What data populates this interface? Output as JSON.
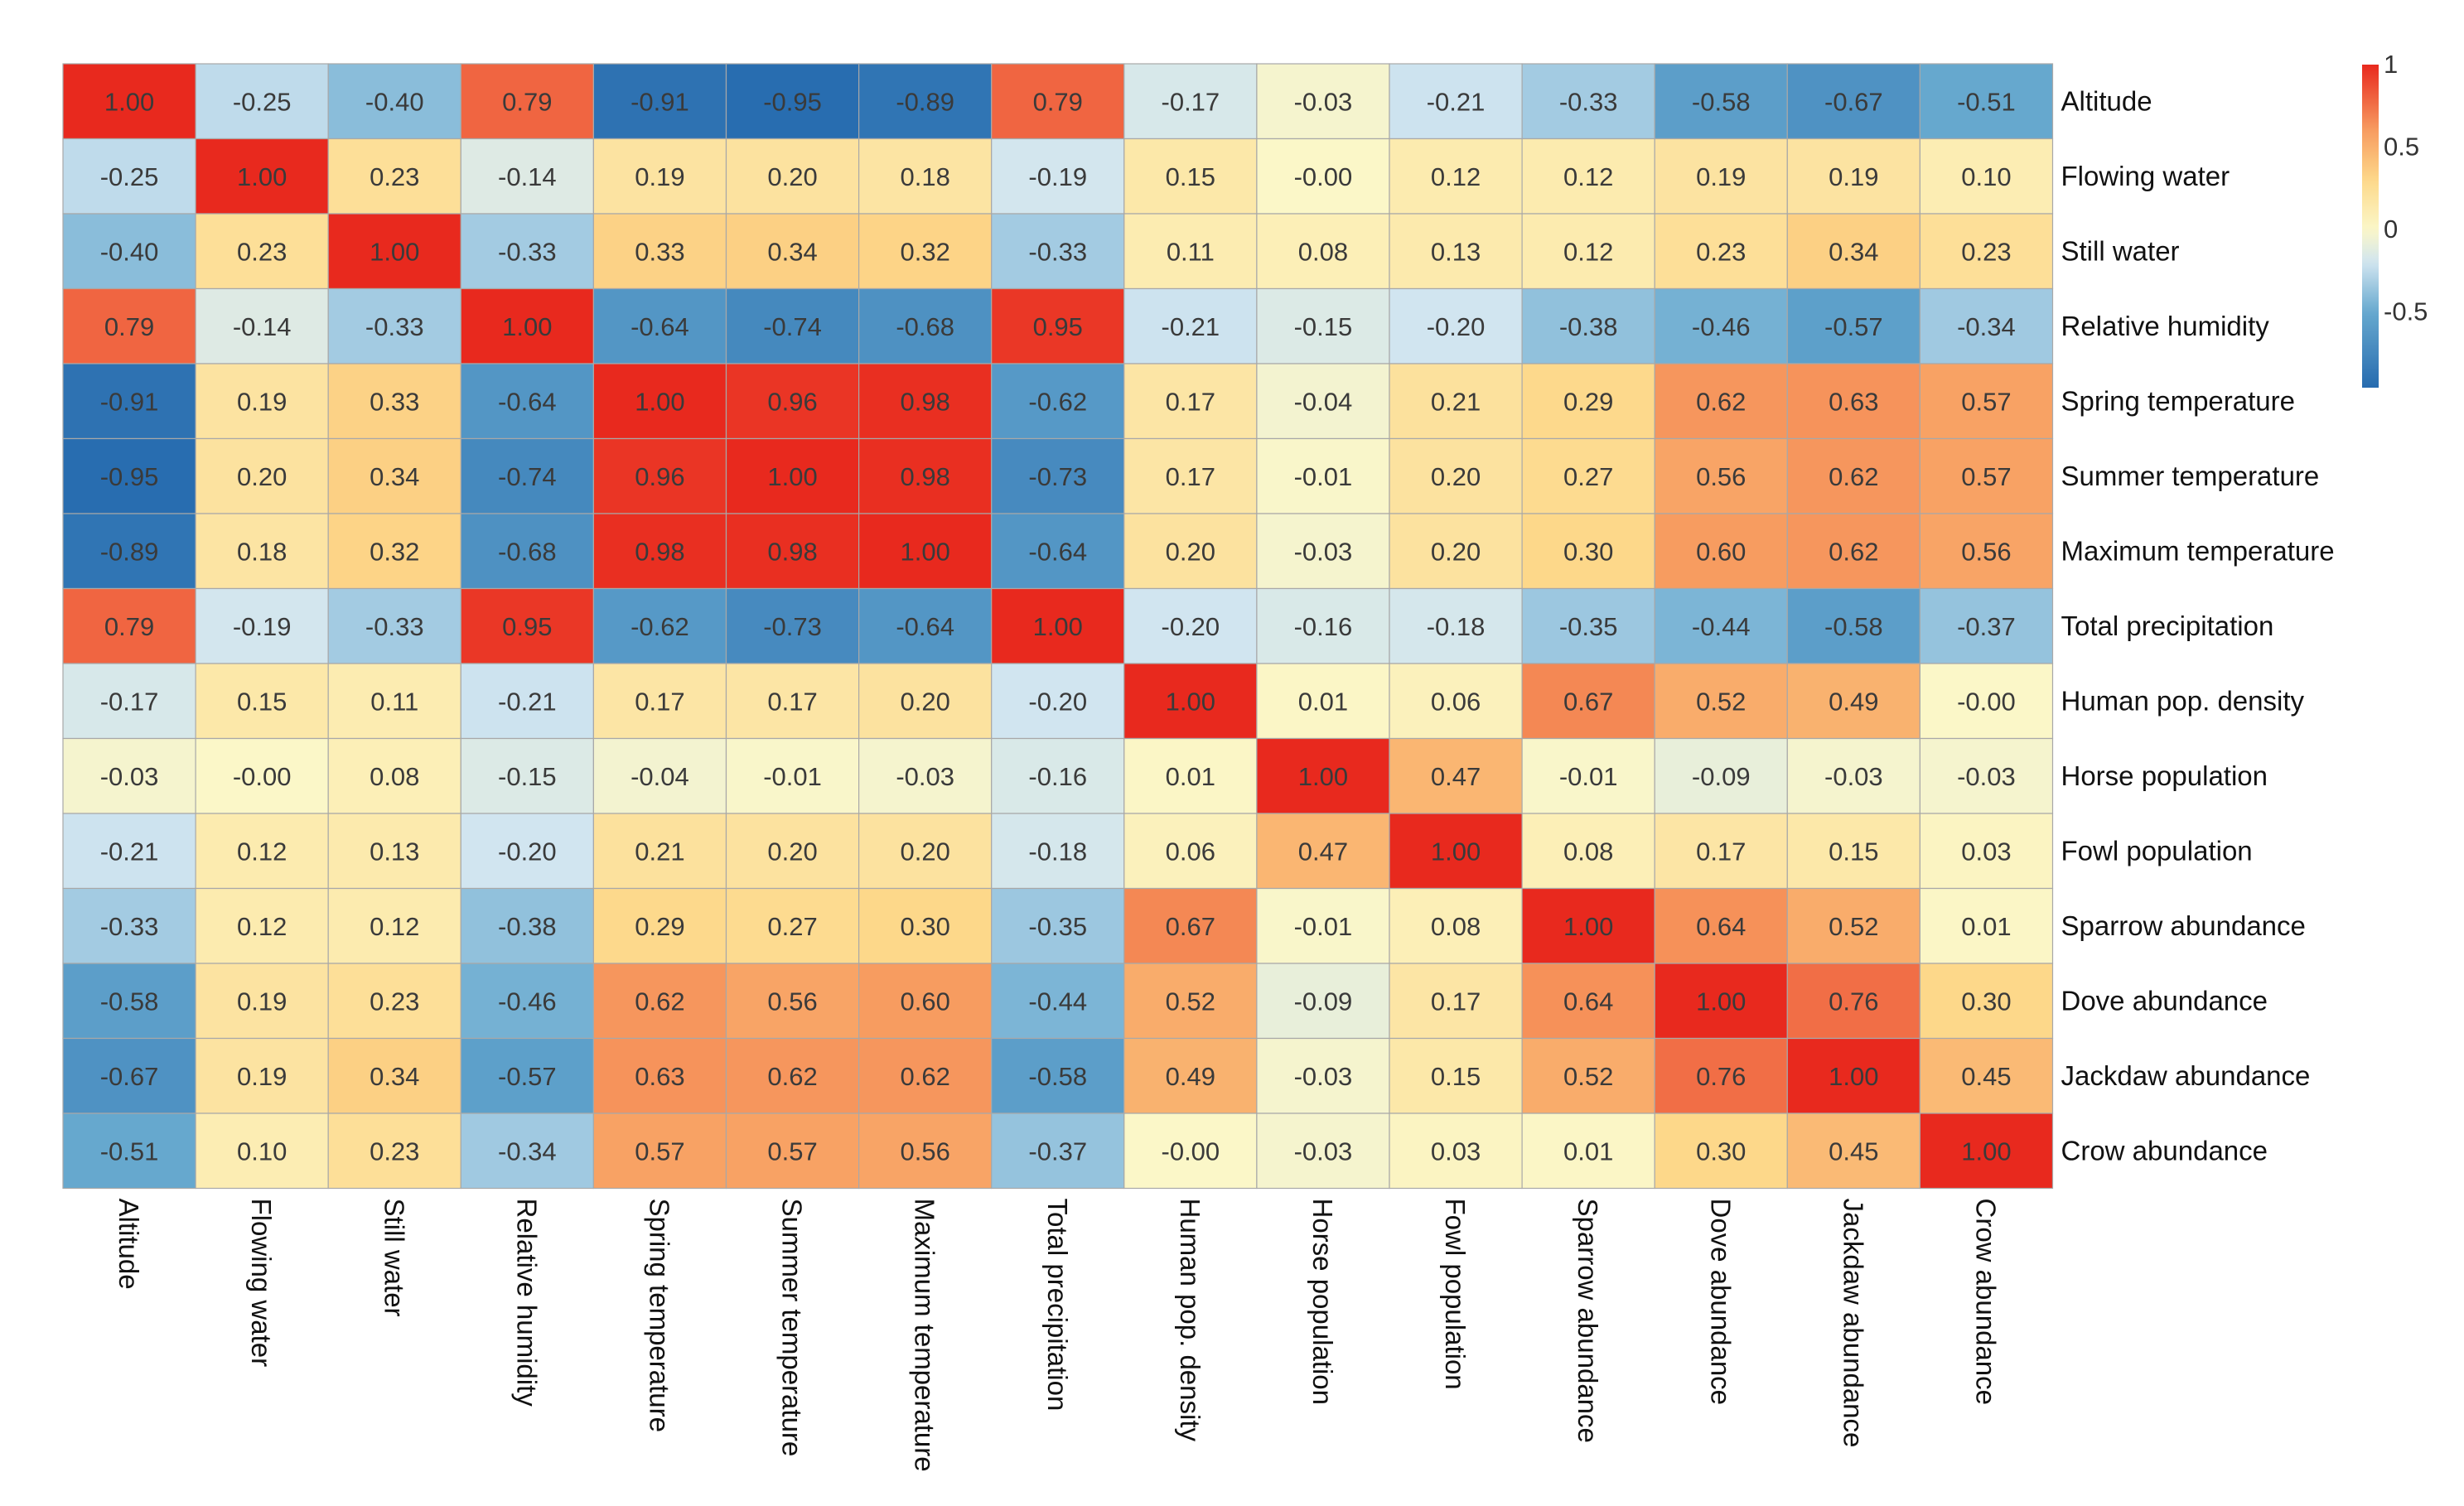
{
  "chart_data": {
    "type": "heatmap",
    "title": "",
    "variables": [
      "Altitude",
      "Flowing water",
      "Still water",
      "Relative humidity",
      "Spring temperature",
      "Summer temperature",
      "Maximum temperature",
      "Total precipitation",
      "Human pop. density",
      "Horse population",
      "Fowl population",
      "Sparrow abundance",
      "Dove abundance",
      "Jackdaw abundance",
      "Crow abundance"
    ],
    "matrix": [
      [
        "1.00",
        "-0.25",
        "-0.40",
        "0.79",
        "-0.91",
        "-0.95",
        "-0.89",
        "0.79",
        "-0.17",
        "-0.03",
        "-0.21",
        "-0.33",
        "-0.58",
        "-0.67",
        "-0.51"
      ],
      [
        "-0.25",
        "1.00",
        "0.23",
        "-0.14",
        "0.19",
        "0.20",
        "0.18",
        "-0.19",
        "0.15",
        "-0.00",
        "0.12",
        "0.12",
        "0.19",
        "0.19",
        "0.10"
      ],
      [
        "-0.40",
        "0.23",
        "1.00",
        "-0.33",
        "0.33",
        "0.34",
        "0.32",
        "-0.33",
        "0.11",
        "0.08",
        "0.13",
        "0.12",
        "0.23",
        "0.34",
        "0.23"
      ],
      [
        "0.79",
        "-0.14",
        "-0.33",
        "1.00",
        "-0.64",
        "-0.74",
        "-0.68",
        "0.95",
        "-0.21",
        "-0.15",
        "-0.20",
        "-0.38",
        "-0.46",
        "-0.57",
        "-0.34"
      ],
      [
        "-0.91",
        "0.19",
        "0.33",
        "-0.64",
        "1.00",
        "0.96",
        "0.98",
        "-0.62",
        "0.17",
        "-0.04",
        "0.21",
        "0.29",
        "0.62",
        "0.63",
        "0.57"
      ],
      [
        "-0.95",
        "0.20",
        "0.34",
        "-0.74",
        "0.96",
        "1.00",
        "0.98",
        "-0.73",
        "0.17",
        "-0.01",
        "0.20",
        "0.27",
        "0.56",
        "0.62",
        "0.57"
      ],
      [
        "-0.89",
        "0.18",
        "0.32",
        "-0.68",
        "0.98",
        "0.98",
        "1.00",
        "-0.64",
        "0.20",
        "-0.03",
        "0.20",
        "0.30",
        "0.60",
        "0.62",
        "0.56"
      ],
      [
        "0.79",
        "-0.19",
        "-0.33",
        "0.95",
        "-0.62",
        "-0.73",
        "-0.64",
        "1.00",
        "-0.20",
        "-0.16",
        "-0.18",
        "-0.35",
        "-0.44",
        "-0.58",
        "-0.37"
      ],
      [
        "-0.17",
        "0.15",
        "0.11",
        "-0.21",
        "0.17",
        "0.17",
        "0.20",
        "-0.20",
        "1.00",
        "0.01",
        "0.06",
        "0.67",
        "0.52",
        "0.49",
        "-0.00"
      ],
      [
        "-0.03",
        "-0.00",
        "0.08",
        "-0.15",
        "-0.04",
        "-0.01",
        "-0.03",
        "-0.16",
        "0.01",
        "1.00",
        "0.47",
        "-0.01",
        "-0.09",
        "-0.03",
        "-0.03"
      ],
      [
        "-0.21",
        "0.12",
        "0.13",
        "-0.20",
        "0.21",
        "0.20",
        "0.20",
        "-0.18",
        "0.06",
        "0.47",
        "1.00",
        "0.08",
        "0.17",
        "0.15",
        "0.03"
      ],
      [
        "-0.33",
        "0.12",
        "0.12",
        "-0.38",
        "0.29",
        "0.27",
        "0.30",
        "-0.35",
        "0.67",
        "-0.01",
        "0.08",
        "1.00",
        "0.64",
        "0.52",
        "0.01"
      ],
      [
        "-0.58",
        "0.19",
        "0.23",
        "-0.46",
        "0.62",
        "0.56",
        "0.60",
        "-0.44",
        "0.52",
        "-0.09",
        "0.17",
        "0.64",
        "1.00",
        "0.76",
        "0.30"
      ],
      [
        "-0.67",
        "0.19",
        "0.34",
        "-0.57",
        "0.63",
        "0.62",
        "0.62",
        "-0.58",
        "0.49",
        "-0.03",
        "0.15",
        "0.52",
        "0.76",
        "1.00",
        "0.45"
      ],
      [
        "-0.51",
        "0.10",
        "0.23",
        "-0.34",
        "0.57",
        "0.57",
        "0.56",
        "-0.37",
        "-0.00",
        "-0.03",
        "0.03",
        "0.01",
        "0.30",
        "0.45",
        "1.00"
      ]
    ],
    "color_scale": {
      "domain": [
        -1,
        1
      ],
      "stops": [
        {
          "value": -1.0,
          "color": "#2166ac"
        },
        {
          "value": -0.5,
          "color": "#67a9cf"
        },
        {
          "value": -0.2,
          "color": "#d1e5f0"
        },
        {
          "value": 0.0,
          "color": "#fbf7c8"
        },
        {
          "value": 0.3,
          "color": "#fdd88a"
        },
        {
          "value": 0.6,
          "color": "#f79c60"
        },
        {
          "value": 1.0,
          "color": "#e8291e"
        }
      ]
    },
    "legend": {
      "position": "top-right",
      "ticks": [
        "1",
        "0.5",
        "0",
        "-0.5"
      ],
      "tick_values": [
        1,
        0.5,
        0,
        -0.5
      ],
      "range": [
        -0.96,
        1
      ]
    },
    "grid_color": "#a8a8a8"
  }
}
